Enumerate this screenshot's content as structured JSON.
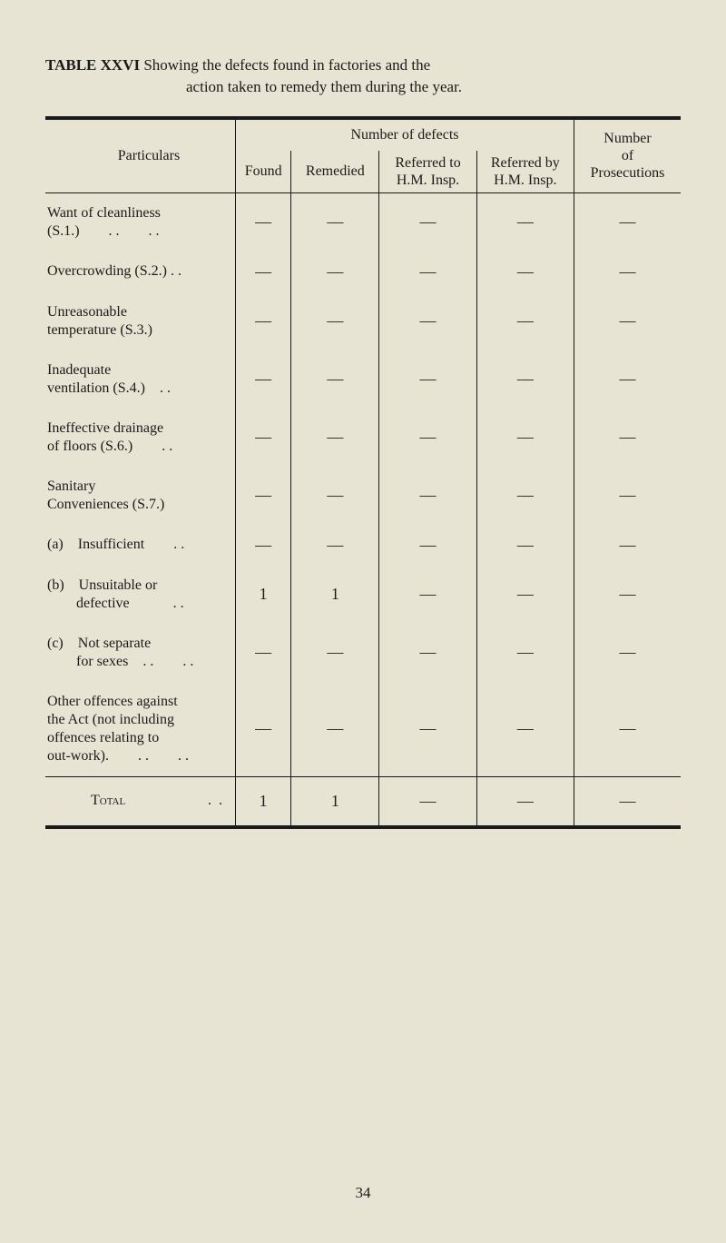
{
  "title": {
    "label": "TABLE XXVI",
    "line1": "Showing the defects found in factories and the",
    "line2": "action taken to remedy them during the year."
  },
  "headers": {
    "particulars": "Particulars",
    "number_of_defects": "Number of defects",
    "number_of_prosecutions": "Number\nof\nProsecutions",
    "found": "Found",
    "remedied": "Remedied",
    "referred_to": "Referred to\nH.M. Insp.",
    "referred_by": "Referred by\nH.M. Insp."
  },
  "rows": [
    {
      "label": "Want of cleanliness\n(S.1.)  . .  . .",
      "found": "—",
      "remedied": "—",
      "refto": "—",
      "refby": "—",
      "pros": "—"
    },
    {
      "label": "Overcrowding (S.2.) . .",
      "found": "—",
      "remedied": "—",
      "refto": "—",
      "refby": "—",
      "pros": "—"
    },
    {
      "label": "Unreasonable\ntemperature (S.3.)",
      "found": "—",
      "remedied": "—",
      "refto": "—",
      "refby": "—",
      "pros": "—"
    },
    {
      "label": "Inadequate\nventilation (S.4.) . .",
      "found": "—",
      "remedied": "—",
      "refto": "—",
      "refby": "—",
      "pros": "—"
    },
    {
      "label": "Ineffective drainage\nof floors (S.6.)  . .",
      "found": "—",
      "remedied": "—",
      "refto": "—",
      "refby": "—",
      "pros": "—"
    },
    {
      "label": "Sanitary\nConveniences (S.7.)",
      "found": "—",
      "remedied": "—",
      "refto": "—",
      "refby": "—",
      "pros": "—"
    },
    {
      "label": "(a) Insufficient  . .",
      "found": "—",
      "remedied": "—",
      "refto": "—",
      "refby": "—",
      "pros": "—"
    },
    {
      "label": "(b) Unsuitable or\n  defective   . .",
      "found": "1",
      "remedied": "1",
      "refto": "—",
      "refby": "—",
      "pros": "—"
    },
    {
      "label": "(c) Not separate\n  for sexes . .  . .",
      "found": "—",
      "remedied": "—",
      "refto": "—",
      "refby": "—",
      "pros": "—"
    },
    {
      "label": "Other offences against\nthe Act (not including\noffences relating to\nout-work).  . .  . .",
      "found": "—",
      "remedied": "—",
      "refto": "—",
      "refby": "—",
      "pros": "—"
    }
  ],
  "total": {
    "label": "Total",
    "dots": ". .",
    "found": "1",
    "remedied": "1",
    "refto": "—",
    "refby": "—",
    "pros": "—"
  },
  "page_number": "34",
  "colors": {
    "background": "#e8e4d4",
    "text": "#1a1a1a",
    "rule": "#1a1a1a"
  }
}
